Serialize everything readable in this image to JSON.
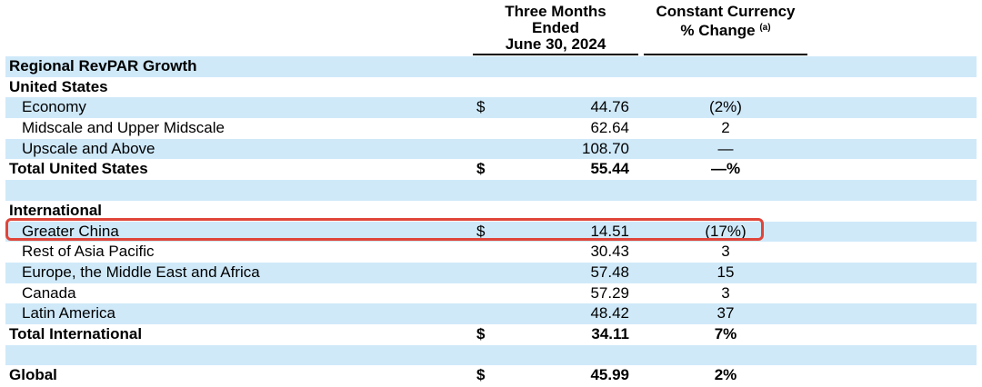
{
  "header": {
    "col_period": [
      "Three Months",
      "Ended",
      "June 30, 2024"
    ],
    "col_change_line1": "Constant Currency",
    "col_change_line2": "% Change",
    "col_change_note": "(a)"
  },
  "rows": [
    {
      "label": "Regional RevPAR Growth",
      "dollar": "",
      "value": "",
      "change": ""
    },
    {
      "label": "United States",
      "dollar": "",
      "value": "",
      "change": ""
    },
    {
      "label": "Economy",
      "dollar": "$",
      "value": "44.76",
      "change": "(2%)"
    },
    {
      "label": "Midscale and Upper Midscale",
      "dollar": "",
      "value": "62.64",
      "change": "2"
    },
    {
      "label": "Upscale and Above",
      "dollar": "",
      "value": "108.70",
      "change": "—"
    },
    {
      "label": "Total United States",
      "dollar": "$",
      "value": "55.44",
      "change": "—%"
    },
    {
      "label": "",
      "dollar": "",
      "value": "",
      "change": ""
    },
    {
      "label": "International",
      "dollar": "",
      "value": "",
      "change": ""
    },
    {
      "label": "Greater China",
      "dollar": "$",
      "value": "14.51",
      "change": "(17%)"
    },
    {
      "label": "Rest of Asia Pacific",
      "dollar": "",
      "value": "30.43",
      "change": "3"
    },
    {
      "label": "Europe, the Middle East and Africa",
      "dollar": "",
      "value": "57.48",
      "change": "15"
    },
    {
      "label": "Canada",
      "dollar": "",
      "value": "57.29",
      "change": "3"
    },
    {
      "label": "Latin America",
      "dollar": "",
      "value": "48.42",
      "change": "37"
    },
    {
      "label": "Total International",
      "dollar": "$",
      "value": "34.11",
      "change": "7%"
    },
    {
      "label": "",
      "dollar": "",
      "value": "",
      "change": ""
    },
    {
      "label": "Global",
      "dollar": "$",
      "value": "45.99",
      "change": "2%"
    }
  ],
  "highlight_color": "#e0453a",
  "row_shade_color": "#cfe9f9"
}
